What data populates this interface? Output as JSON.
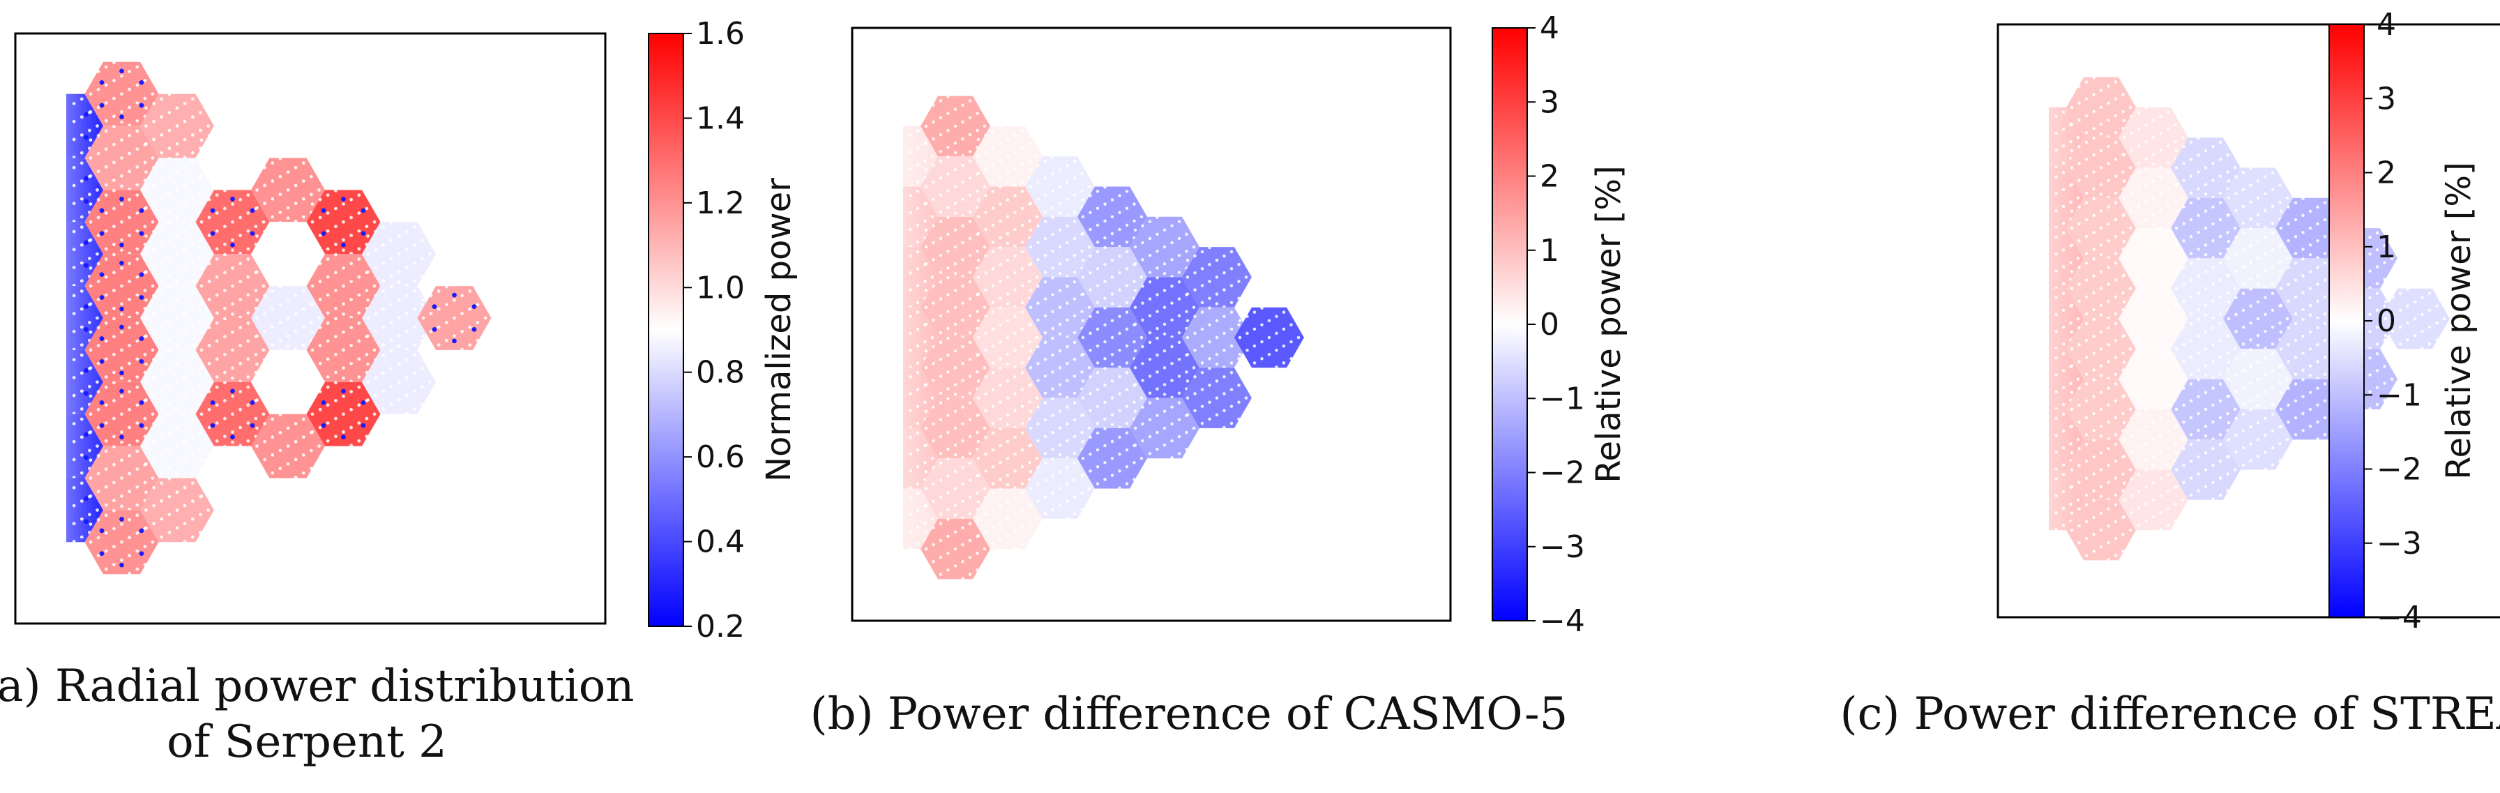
{
  "colors": {
    "positive": "#ff0000",
    "neutral": "#ffffff",
    "negative": "#0000ff",
    "frame": "#000000",
    "pin": "#ffffff",
    "poison": "#1a1aff"
  },
  "chart_data": [
    {
      "type": "heatmap",
      "id": "serpent",
      "caption_lines": [
        "(a) Radial power distribution",
        "of Serpent 2"
      ],
      "colorbar": {
        "label": "Normalized power",
        "range": [
          0.2,
          1.6
        ],
        "ticks": [
          "1.6",
          "1.4",
          "1.2",
          "1.0",
          "0.8",
          "0.6",
          "0.4",
          "0.2"
        ]
      },
      "assemblies": [
        {
          "col": 0,
          "row": -3,
          "value": 0.3,
          "half": true,
          "poison": true
        },
        {
          "col": 0,
          "row": -2,
          "value": 0.32,
          "half": true,
          "poison": true
        },
        {
          "col": 0,
          "row": -1,
          "value": 0.34,
          "half": true,
          "poison": true
        },
        {
          "col": 0,
          "row": 0,
          "value": 0.34,
          "half": true,
          "poison": true
        },
        {
          "col": 0,
          "row": 1,
          "value": 0.34,
          "half": true,
          "poison": true
        },
        {
          "col": 0,
          "row": 2,
          "value": 0.32,
          "half": true,
          "poison": true
        },
        {
          "col": 0,
          "row": 3,
          "value": 0.3,
          "half": true,
          "poison": true
        },
        {
          "col": 1,
          "row": -3.5,
          "value": 1.2,
          "poison": true
        },
        {
          "col": 1,
          "row": -2.5,
          "value": 1.15
        },
        {
          "col": 1,
          "row": -1.5,
          "value": 1.25,
          "poison": true
        },
        {
          "col": 1,
          "row": -0.5,
          "value": 1.25,
          "poison": true
        },
        {
          "col": 1,
          "row": 0.5,
          "value": 1.25,
          "poison": true
        },
        {
          "col": 1,
          "row": 1.5,
          "value": 1.25,
          "poison": true
        },
        {
          "col": 1,
          "row": 2.5,
          "value": 1.15
        },
        {
          "col": 1,
          "row": 3.5,
          "value": 1.2,
          "poison": true
        },
        {
          "col": 2,
          "row": -3,
          "value": 1.12
        },
        {
          "col": 2,
          "row": -2,
          "value": 0.88
        },
        {
          "col": 2,
          "row": -1,
          "value": 0.88
        },
        {
          "col": 2,
          "row": 0,
          "value": 0.88
        },
        {
          "col": 2,
          "row": 1,
          "value": 0.88
        },
        {
          "col": 2,
          "row": 2,
          "value": 0.88
        },
        {
          "col": 2,
          "row": 3,
          "value": 1.12
        },
        {
          "col": 3,
          "row": -2.5,
          "value": 0.9
        },
        {
          "col": 3,
          "row": -1.5,
          "value": 1.3,
          "poison": true
        },
        {
          "col": 3,
          "row": -0.5,
          "value": 1.15
        },
        {
          "col": 3,
          "row": 0.5,
          "value": 1.15
        },
        {
          "col": 3,
          "row": 1.5,
          "value": 1.3,
          "poison": true
        },
        {
          "col": 3,
          "row": 2.5,
          "value": 0.9
        },
        {
          "col": 4,
          "row": -2,
          "value": 1.2
        },
        {
          "col": 4,
          "row": -1,
          "value": 0.9
        },
        {
          "col": 4,
          "row": 0,
          "value": 0.85
        },
        {
          "col": 4,
          "row": 1,
          "value": 0.9
        },
        {
          "col": 4,
          "row": 2,
          "value": 1.2
        },
        {
          "col": 5,
          "row": -1.5,
          "value": 1.4,
          "poison": true
        },
        {
          "col": 5,
          "row": -0.5,
          "value": 1.2
        },
        {
          "col": 5,
          "row": 0.5,
          "value": 1.2
        },
        {
          "col": 5,
          "row": 1.5,
          "value": 1.4,
          "poison": true
        },
        {
          "col": 6,
          "row": -1,
          "value": 0.85
        },
        {
          "col": 6,
          "row": 0,
          "value": 0.85
        },
        {
          "col": 6,
          "row": 1,
          "value": 0.85
        },
        {
          "col": 7,
          "row": 0,
          "value": 1.15,
          "poison": true
        }
      ]
    },
    {
      "type": "heatmap",
      "id": "casmo5",
      "caption_lines": [
        "(b) Power difference of CASMO-5"
      ],
      "colorbar": {
        "label": "Relative power [%]",
        "range": [
          -4,
          4
        ],
        "ticks": [
          "4",
          "3",
          "2",
          "1",
          "0",
          "−1",
          "−2",
          "−3",
          "−4"
        ]
      },
      "assemblies": [
        {
          "col": 0,
          "row": -3,
          "value": 0.4,
          "half": true
        },
        {
          "col": 0,
          "row": -2,
          "value": 0.9,
          "half": true
        },
        {
          "col": 0,
          "row": -1,
          "value": 1.0,
          "half": true
        },
        {
          "col": 0,
          "row": 0,
          "value": 1.0,
          "half": true
        },
        {
          "col": 0,
          "row": 1,
          "value": 1.0,
          "half": true
        },
        {
          "col": 0,
          "row": 2,
          "value": 0.9,
          "half": true
        },
        {
          "col": 0,
          "row": 3,
          "value": 0.4,
          "half": true
        },
        {
          "col": 1,
          "row": -3.5,
          "value": 1.3
        },
        {
          "col": 1,
          "row": -2.5,
          "value": 0.6
        },
        {
          "col": 1,
          "row": -1.5,
          "value": 1.0
        },
        {
          "col": 1,
          "row": -0.5,
          "value": 1.0
        },
        {
          "col": 1,
          "row": 0.5,
          "value": 1.0
        },
        {
          "col": 1,
          "row": 1.5,
          "value": 1.0
        },
        {
          "col": 1,
          "row": 2.5,
          "value": 0.6
        },
        {
          "col": 1,
          "row": 3.5,
          "value": 1.3
        },
        {
          "col": 2,
          "row": -3,
          "value": 0.2
        },
        {
          "col": 2,
          "row": -2,
          "value": 0.8
        },
        {
          "col": 2,
          "row": -1,
          "value": 0.6
        },
        {
          "col": 2,
          "row": 0,
          "value": 0.5
        },
        {
          "col": 2,
          "row": 1,
          "value": 0.6
        },
        {
          "col": 2,
          "row": 2,
          "value": 0.8
        },
        {
          "col": 2,
          "row": 3,
          "value": 0.2
        },
        {
          "col": 3,
          "row": -2.5,
          "value": -0.3
        },
        {
          "col": 3,
          "row": -1.5,
          "value": -0.6
        },
        {
          "col": 3,
          "row": -0.5,
          "value": -1.0
        },
        {
          "col": 3,
          "row": 0.5,
          "value": -1.0
        },
        {
          "col": 3,
          "row": 1.5,
          "value": -0.6
        },
        {
          "col": 3,
          "row": 2.5,
          "value": -0.3
        },
        {
          "col": 4,
          "row": -2,
          "value": -1.6
        },
        {
          "col": 4,
          "row": -1,
          "value": -0.7
        },
        {
          "col": 4,
          "row": 0,
          "value": -1.8
        },
        {
          "col": 4,
          "row": 1,
          "value": -0.7
        },
        {
          "col": 4,
          "row": 2,
          "value": -1.6
        },
        {
          "col": 5,
          "row": -1.5,
          "value": -1.4
        },
        {
          "col": 5,
          "row": -0.5,
          "value": -2.2
        },
        {
          "col": 5,
          "row": 0.5,
          "value": -2.2
        },
        {
          "col": 5,
          "row": 1.5,
          "value": -1.4
        },
        {
          "col": 6,
          "row": -1,
          "value": -2.0
        },
        {
          "col": 6,
          "row": 0,
          "value": -1.3
        },
        {
          "col": 6,
          "row": 1,
          "value": -2.0
        },
        {
          "col": 7,
          "row": 0,
          "value": -2.6
        }
      ]
    },
    {
      "type": "heatmap",
      "id": "stream",
      "caption_lines": [
        "(c) Power difference of STREAM"
      ],
      "colorbar": {
        "label": "Relative power [%]",
        "range": [
          -4,
          4
        ],
        "ticks": [
          "4",
          "3",
          "2",
          "1",
          "0",
          "−1",
          "−2",
          "−3",
          "−4"
        ]
      },
      "assemblies": [
        {
          "col": 0,
          "row": -3,
          "value": 1.0,
          "half": true
        },
        {
          "col": 0,
          "row": -2,
          "value": 1.1,
          "half": true
        },
        {
          "col": 0,
          "row": -1,
          "value": 1.1,
          "half": true
        },
        {
          "col": 0,
          "row": 0,
          "value": 1.1,
          "half": true
        },
        {
          "col": 0,
          "row": 1,
          "value": 1.1,
          "half": true
        },
        {
          "col": 0,
          "row": 2,
          "value": 1.1,
          "half": true
        },
        {
          "col": 0,
          "row": 3,
          "value": 1.0,
          "half": true
        },
        {
          "col": 1,
          "row": -3.5,
          "value": 0.9
        },
        {
          "col": 1,
          "row": -2.5,
          "value": 0.9
        },
        {
          "col": 1,
          "row": -1.5,
          "value": 0.8
        },
        {
          "col": 1,
          "row": -0.5,
          "value": 0.8
        },
        {
          "col": 1,
          "row": 0.5,
          "value": 0.8
        },
        {
          "col": 1,
          "row": 1.5,
          "value": 0.8
        },
        {
          "col": 1,
          "row": 2.5,
          "value": 0.9
        },
        {
          "col": 1,
          "row": 3.5,
          "value": 0.9
        },
        {
          "col": 2,
          "row": -3,
          "value": 0.4
        },
        {
          "col": 2,
          "row": -2,
          "value": 0.2
        },
        {
          "col": 2,
          "row": -1,
          "value": 0.1
        },
        {
          "col": 2,
          "row": 0,
          "value": 0.1
        },
        {
          "col": 2,
          "row": 1,
          "value": 0.1
        },
        {
          "col": 2,
          "row": 2,
          "value": 0.2
        },
        {
          "col": 2,
          "row": 3,
          "value": 0.4
        },
        {
          "col": 3,
          "row": -2.5,
          "value": -0.6
        },
        {
          "col": 3,
          "row": -1.5,
          "value": -0.9
        },
        {
          "col": 3,
          "row": -0.5,
          "value": -0.3
        },
        {
          "col": 3,
          "row": 0.5,
          "value": -0.3
        },
        {
          "col": 3,
          "row": 1.5,
          "value": -0.9
        },
        {
          "col": 3,
          "row": 2.5,
          "value": -0.6
        },
        {
          "col": 4,
          "row": -2,
          "value": -0.5
        },
        {
          "col": 4,
          "row": -1,
          "value": -0.2
        },
        {
          "col": 4,
          "row": 0,
          "value": -1.0
        },
        {
          "col": 4,
          "row": 1,
          "value": -0.2
        },
        {
          "col": 4,
          "row": 2,
          "value": -0.5
        },
        {
          "col": 5,
          "row": -1.5,
          "value": -1.2
        },
        {
          "col": 5,
          "row": -0.5,
          "value": -0.6
        },
        {
          "col": 5,
          "row": 0.5,
          "value": -0.6
        },
        {
          "col": 5,
          "row": 1.5,
          "value": -1.2
        },
        {
          "col": 6,
          "row": -1,
          "value": -1.0
        },
        {
          "col": 6,
          "row": 0,
          "value": -0.7
        },
        {
          "col": 6,
          "row": 1,
          "value": -1.0
        },
        {
          "col": 7,
          "row": 0,
          "value": -0.5
        }
      ]
    }
  ]
}
